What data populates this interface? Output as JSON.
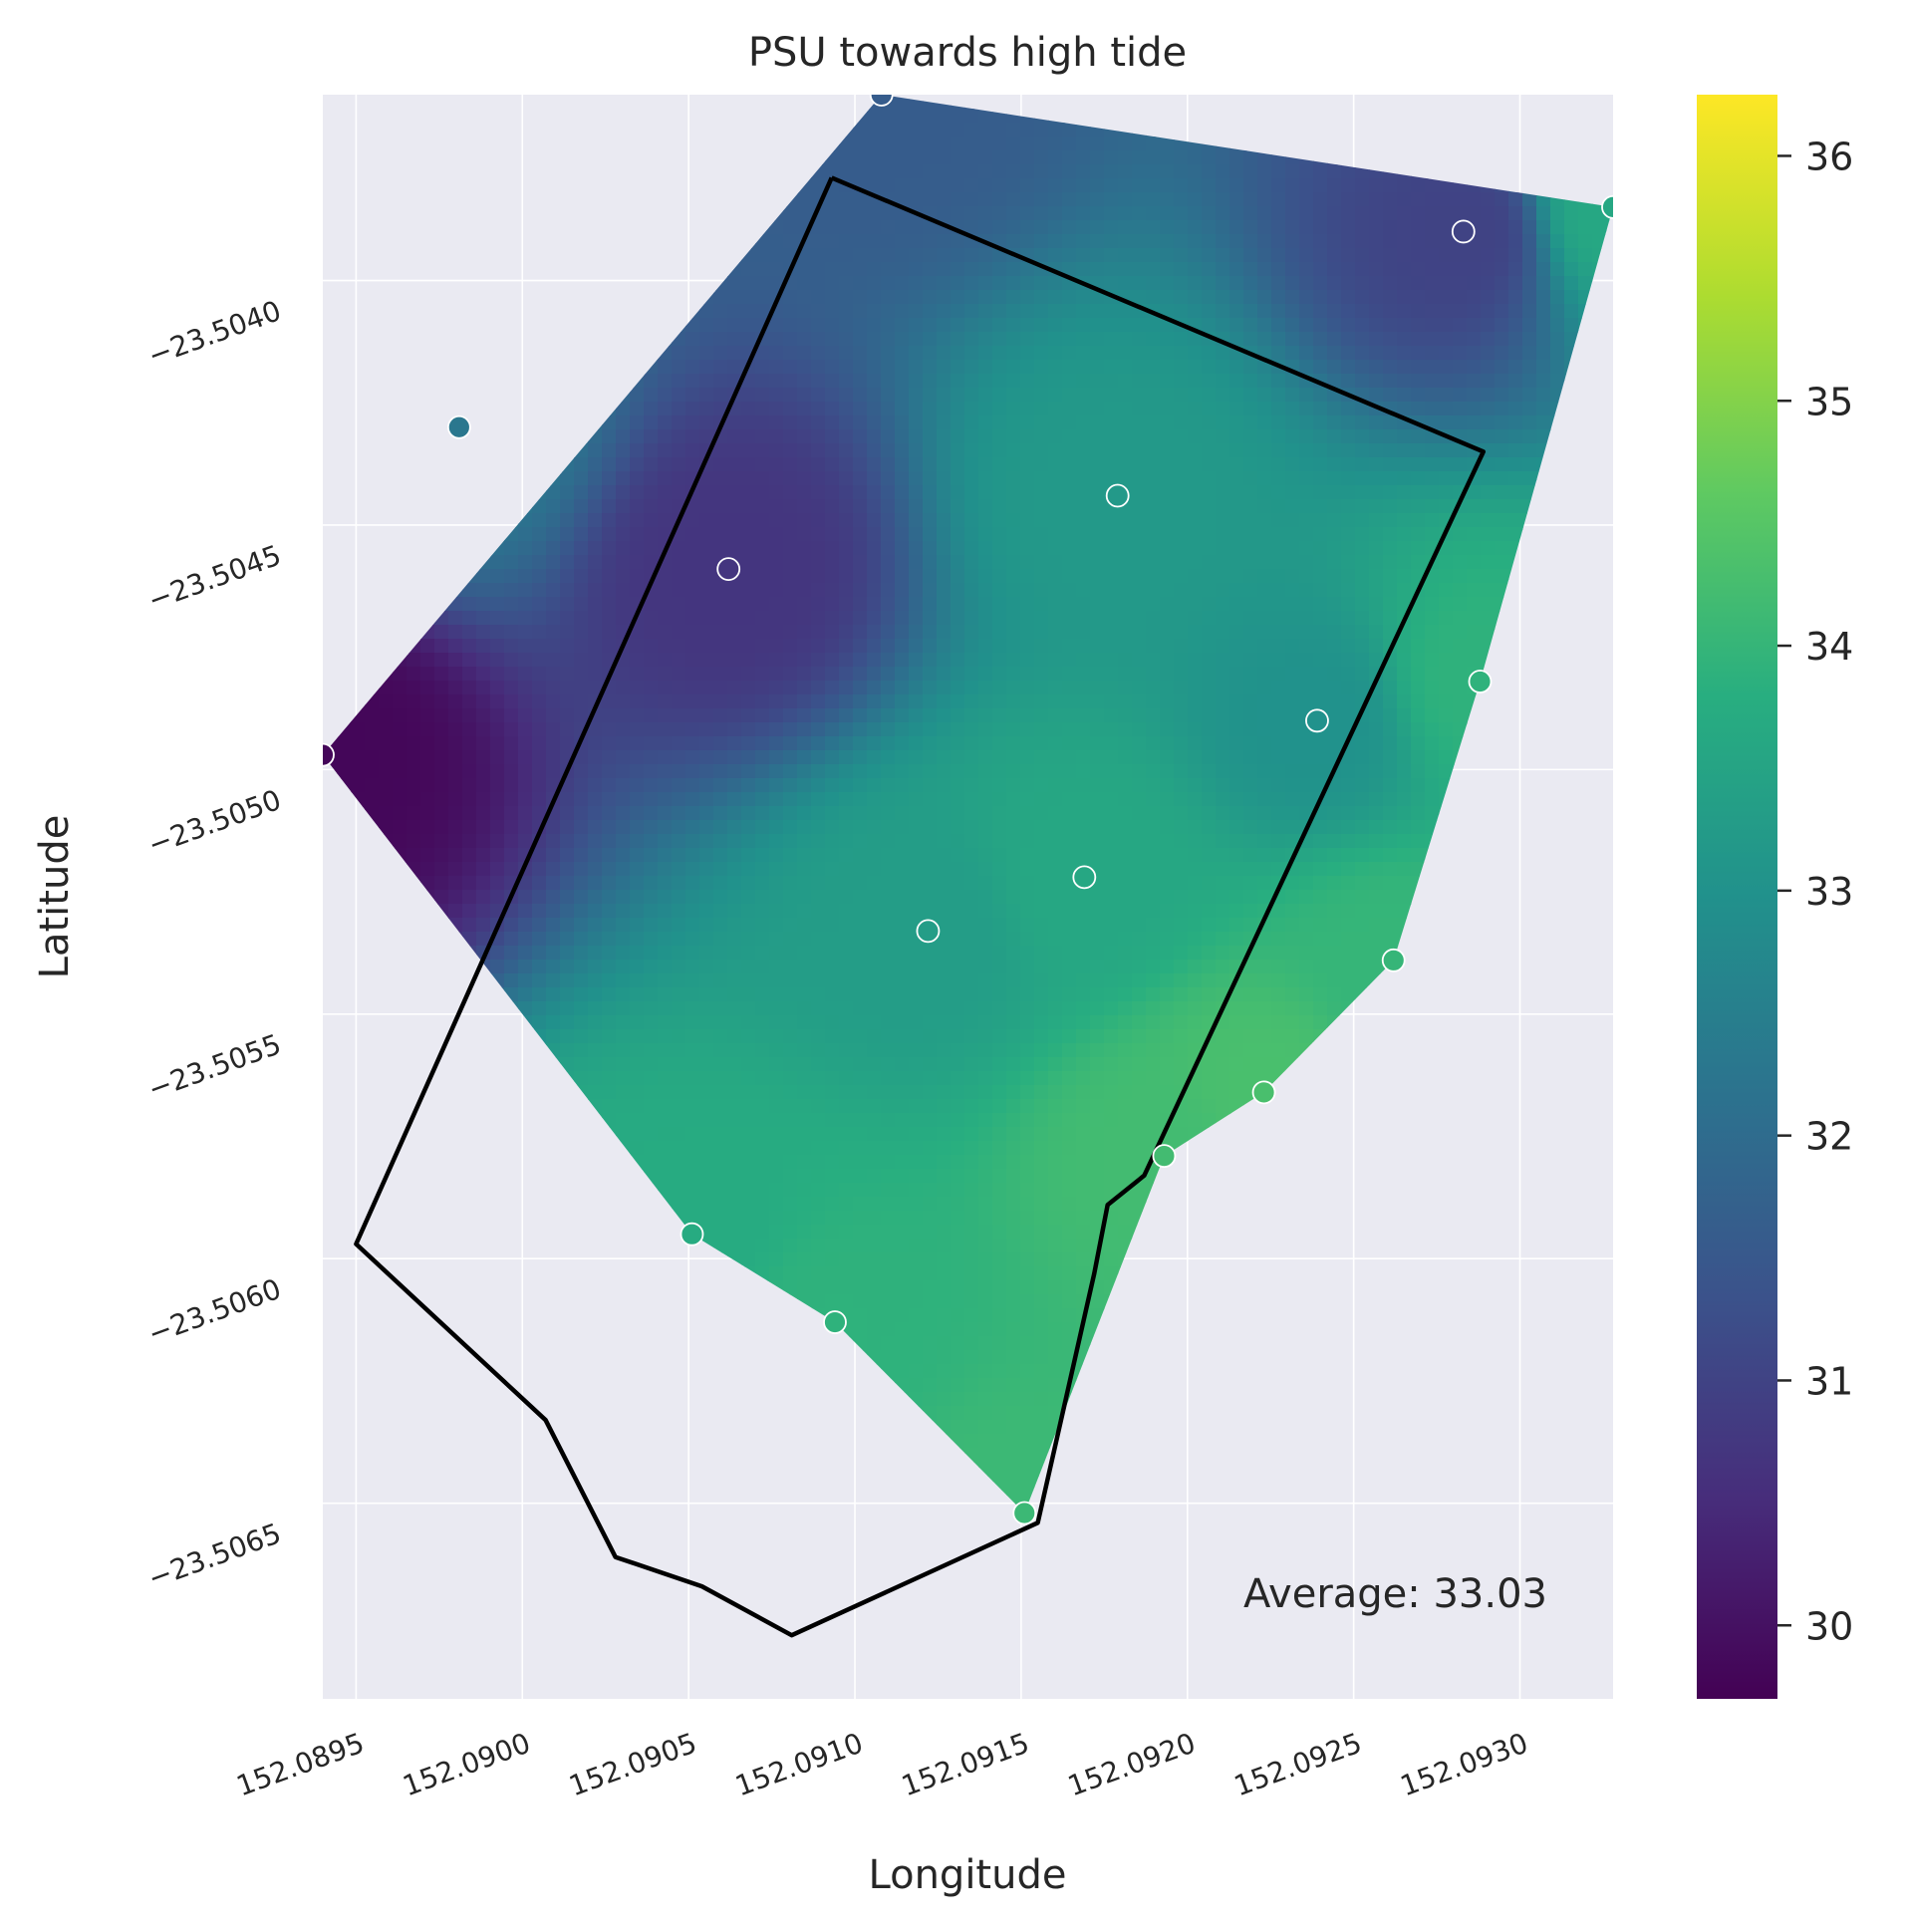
{
  "chart_data": {
    "type": "heatmap",
    "title": "PSU towards high tide",
    "xlabel": "Longitude",
    "ylabel": "Latitude",
    "xlim": [
      152.0894,
      152.09328
    ],
    "ylim": [
      -23.5069,
      -23.50362
    ],
    "x_ticks": [
      152.0895,
      152.09,
      152.0905,
      152.091,
      152.0915,
      152.092,
      152.0925,
      152.093
    ],
    "x_tick_labels": [
      "152.0895",
      "152.0900",
      "152.0905",
      "152.0910",
      "152.0915",
      "152.0920",
      "152.0925",
      "152.0930"
    ],
    "y_ticks": [
      -23.504,
      -23.5045,
      -23.505,
      -23.5055,
      -23.506,
      -23.5065
    ],
    "y_tick_labels": [
      "−23.5040",
      "−23.5045",
      "−23.5050",
      "−23.5055",
      "−23.5060",
      "−23.5065"
    ],
    "grid": true,
    "colormap": "viridis",
    "colorbar": {
      "min": 29.7,
      "max": 36.25,
      "ticks": [
        30,
        31,
        32,
        33,
        34,
        35,
        36
      ],
      "tick_labels": [
        "30",
        "31",
        "32",
        "33",
        "34",
        "35",
        "36"
      ]
    },
    "annotation": "Average: 33.03",
    "points": [
      {
        "lon": 152.0894,
        "lat": -23.50497,
        "value": 29.8
      },
      {
        "lon": 152.08981,
        "lat": -23.5043,
        "value": 32.3
      },
      {
        "lon": 152.09108,
        "lat": -23.50362,
        "value": 31.6
      },
      {
        "lon": 152.09328,
        "lat": -23.50385,
        "value": 33.6
      },
      {
        "lon": 152.09283,
        "lat": -23.5039,
        "value": 31.0
      },
      {
        "lon": 152.09062,
        "lat": -23.50459,
        "value": 30.7
      },
      {
        "lon": 152.09179,
        "lat": -23.50444,
        "value": 33.2
      },
      {
        "lon": 152.09239,
        "lat": -23.5049,
        "value": 33.0
      },
      {
        "lon": 152.09288,
        "lat": -23.50482,
        "value": 33.9
      },
      {
        "lon": 152.09169,
        "lat": -23.50522,
        "value": 33.6
      },
      {
        "lon": 152.09122,
        "lat": -23.50533,
        "value": 33.3
      },
      {
        "lon": 152.09262,
        "lat": -23.50539,
        "value": 34.0
      },
      {
        "lon": 152.09223,
        "lat": -23.50566,
        "value": 34.3
      },
      {
        "lon": 152.09193,
        "lat": -23.50579,
        "value": 34.2
      },
      {
        "lon": 152.09051,
        "lat": -23.50595,
        "value": 33.7
      },
      {
        "lon": 152.09094,
        "lat": -23.50613,
        "value": 33.9
      },
      {
        "lon": 152.09151,
        "lat": -23.50652,
        "value": 34.1
      }
    ],
    "boundary": [
      [
        152.09093,
        -23.50379
      ],
      [
        152.09289,
        -23.50435
      ],
      [
        152.09187,
        -23.50583
      ],
      [
        152.09176,
        -23.50589
      ],
      [
        152.09172,
        -23.50603
      ],
      [
        152.09155,
        -23.50654
      ],
      [
        152.09081,
        -23.50677
      ],
      [
        152.09054,
        -23.50667
      ],
      [
        152.09028,
        -23.50661
      ],
      [
        152.09007,
        -23.50633
      ],
      [
        152.0895,
        -23.50597
      ],
      [
        152.09093,
        -23.50379
      ]
    ],
    "hull_order": [
      0,
      2,
      3,
      8,
      11,
      12,
      13,
      16,
      15,
      14
    ]
  }
}
